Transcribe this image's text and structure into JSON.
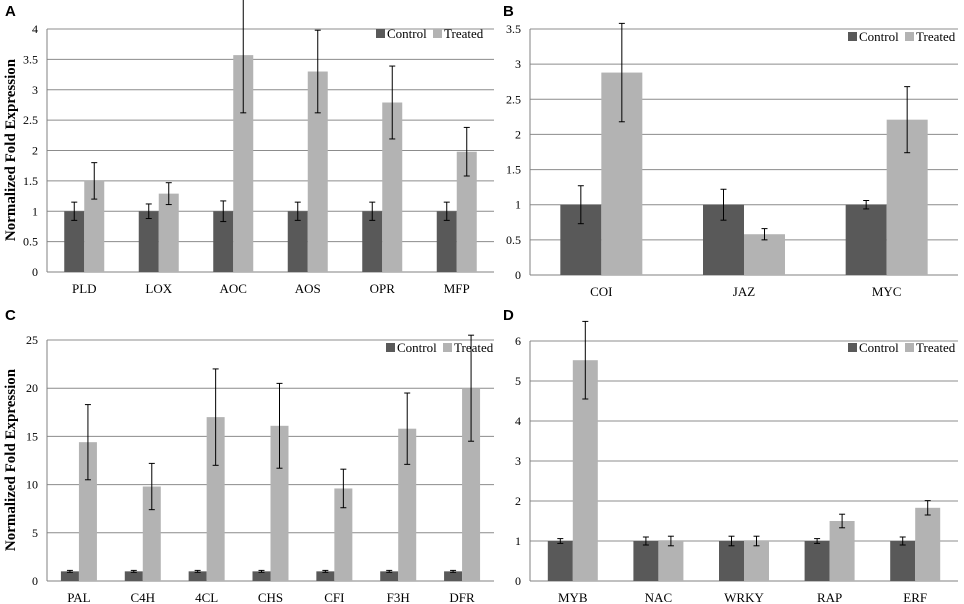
{
  "chart_data": [
    {
      "type": "bar",
      "panel": "A",
      "ylabel": "Normalized Fold Expression",
      "ylim": [
        0,
        4
      ],
      "ytick_step": 0.5,
      "yticks": [
        "0",
        "0.5",
        "1",
        "1.5",
        "2",
        "2.5",
        "3",
        "3.5",
        "4"
      ],
      "grid": true,
      "legend": "top-right",
      "categories": [
        "PLD",
        "LOX",
        "AOC",
        "AOS",
        "OPR",
        "MFP"
      ],
      "series": [
        {
          "name": "Control",
          "color": "#595959",
          "values": [
            1,
            1,
            1,
            1,
            1,
            1
          ],
          "errors": [
            0.15,
            0.12,
            0.17,
            0.15,
            0.15,
            0.15
          ]
        },
        {
          "name": "Treated",
          "color": "#b3b3b3",
          "values": [
            1.5,
            1.29,
            3.57,
            3.3,
            2.79,
            1.98
          ],
          "errors": [
            0.3,
            0.18,
            0.95,
            0.68,
            0.6,
            0.4
          ]
        }
      ]
    },
    {
      "type": "bar",
      "panel": "B",
      "ylabel": "",
      "ylim": [
        0,
        3.5
      ],
      "ytick_step": 0.5,
      "yticks": [
        "0",
        "0.5",
        "1",
        "1.5",
        "2",
        "2.5",
        "3",
        "3.5"
      ],
      "grid": true,
      "legend": "top-right",
      "categories": [
        "COI",
        "JAZ",
        "MYC"
      ],
      "series": [
        {
          "name": "Control",
          "color": "#595959",
          "values": [
            1,
            1,
            1
          ],
          "errors": [
            0.27,
            0.22,
            0.06
          ]
        },
        {
          "name": "Treated",
          "color": "#b3b3b3",
          "values": [
            2.88,
            0.58,
            2.21
          ],
          "errors": [
            0.7,
            0.08,
            0.47
          ]
        }
      ]
    },
    {
      "type": "bar",
      "panel": "C",
      "ylabel": "Normalized Fold Expression",
      "ylim": [
        0,
        25
      ],
      "ytick_step": 5,
      "yticks": [
        "0",
        "5",
        "10",
        "15",
        "20",
        "25"
      ],
      "grid": true,
      "legend": "top-right",
      "categories": [
        "PAL",
        "C4H",
        "4CL",
        "CHS",
        "CFI",
        "F3H",
        "DFR"
      ],
      "series": [
        {
          "name": "Control",
          "color": "#595959",
          "values": [
            1,
            1,
            1,
            1,
            1,
            1,
            1
          ],
          "errors": [
            0.1,
            0.1,
            0.1,
            0.1,
            0.1,
            0.1,
            0.1
          ]
        },
        {
          "name": "Treated",
          "color": "#b3b3b3",
          "values": [
            14.4,
            9.8,
            17,
            16.1,
            9.6,
            15.8,
            20
          ],
          "errors": [
            3.9,
            2.4,
            5,
            4.4,
            2,
            3.7,
            5.5
          ]
        }
      ]
    },
    {
      "type": "bar",
      "panel": "D",
      "ylabel": "",
      "ylim": [
        0,
        6
      ],
      "ytick_step": 1,
      "yticks": [
        "0",
        "1",
        "2",
        "3",
        "4",
        "5",
        "6"
      ],
      "grid": true,
      "legend": "top-right",
      "categories": [
        "MYB",
        "NAC",
        "WRKY",
        "RAP",
        "ERF"
      ],
      "series": [
        {
          "name": "Control",
          "color": "#595959",
          "values": [
            1,
            1,
            1,
            1,
            1
          ],
          "errors": [
            0.06,
            0.1,
            0.12,
            0.06,
            0.1
          ]
        },
        {
          "name": "Treated",
          "color": "#b3b3b3",
          "values": [
            5.52,
            1,
            1,
            1.5,
            1.83
          ],
          "errors": [
            0.97,
            0.12,
            0.12,
            0.17,
            0.18
          ]
        }
      ]
    }
  ],
  "colors": {
    "control": "#595959",
    "treated": "#b3b3b3",
    "grid": "#8c8c8c",
    "axis": "#808080"
  }
}
